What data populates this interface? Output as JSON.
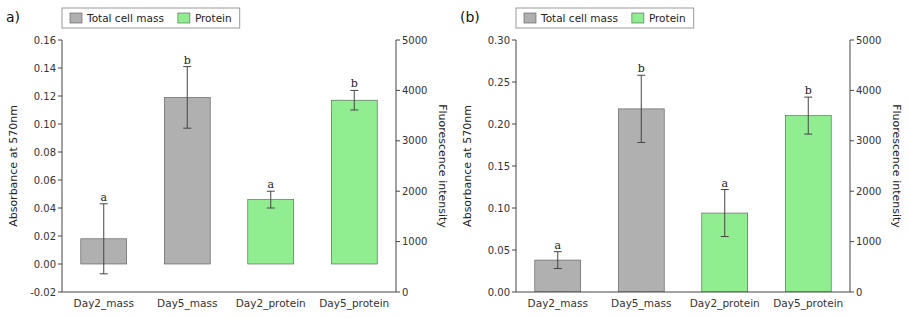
{
  "chart_data": [
    {
      "type": "bar",
      "title": "a)",
      "categories": [
        "Day2_mass",
        "Day5_mass",
        "Day2_protein",
        "Day5_protein"
      ],
      "series": [
        {
          "name": "Total cell mass",
          "color": "#b0b0b0",
          "values": [
            0.018,
            0.119,
            null,
            null
          ],
          "errors": [
            0.025,
            0.022,
            null,
            null
          ],
          "letters": [
            "a",
            "b",
            null,
            null
          ]
        },
        {
          "name": "Protein",
          "color": "#90ee90",
          "values": [
            null,
            null,
            0.046,
            0.117
          ],
          "errors": [
            null,
            null,
            0.006,
            0.007
          ],
          "letters": [
            null,
            null,
            "a",
            "b"
          ]
        }
      ],
      "ylabel": "Absorbance at 570nm",
      "y2label": "Fluorescence intensity",
      "ylim": [
        -0.02,
        0.16
      ],
      "yticks": [
        -0.02,
        {
          "value": 0,
          "label": "0.00"
        },
        0.02,
        0.04,
        0.06,
        0.08,
        {
          "value": 0.1,
          "label": "0.10"
        },
        0.12,
        0.14,
        0.16
      ],
      "y2lim": [
        0,
        5000
      ],
      "y2ticks": [
        0,
        1000,
        2000,
        3000,
        4000,
        5000
      ],
      "legend": "upper left",
      "grid": false
    },
    {
      "type": "bar",
      "title": "(b)",
      "categories": [
        "Day2_mass",
        "Day5_mass",
        "Day2_protein",
        "Day5_protein"
      ],
      "series": [
        {
          "name": "Total cell mass",
          "color": "#b0b0b0",
          "values": [
            0.038,
            0.218,
            null,
            null
          ],
          "errors": [
            0.01,
            0.04,
            null,
            null
          ],
          "letters": [
            "a",
            "b",
            null,
            null
          ]
        },
        {
          "name": "Protein",
          "color": "#90ee90",
          "values": [
            null,
            null,
            0.094,
            0.21
          ],
          "errors": [
            null,
            null,
            0.028,
            0.022
          ],
          "letters": [
            null,
            null,
            "a",
            "b"
          ]
        }
      ],
      "ylabel": "Absorbance at 570nm",
      "y2label": "Fluorescence intensity",
      "ylim": [
        0,
        0.3
      ],
      "yticks": [
        {
          "value": 0,
          "label": "0.00"
        },
        0.05,
        {
          "value": 0.1,
          "label": "0.10"
        },
        0.15,
        {
          "value": 0.2,
          "label": "0.20"
        },
        0.25,
        {
          "value": 0.3,
          "label": "0.30"
        }
      ],
      "y2lim": [
        0,
        5000
      ],
      "y2ticks": [
        0,
        1000,
        2000,
        3000,
        4000,
        5000
      ],
      "legend": "upper left",
      "grid": false
    }
  ]
}
